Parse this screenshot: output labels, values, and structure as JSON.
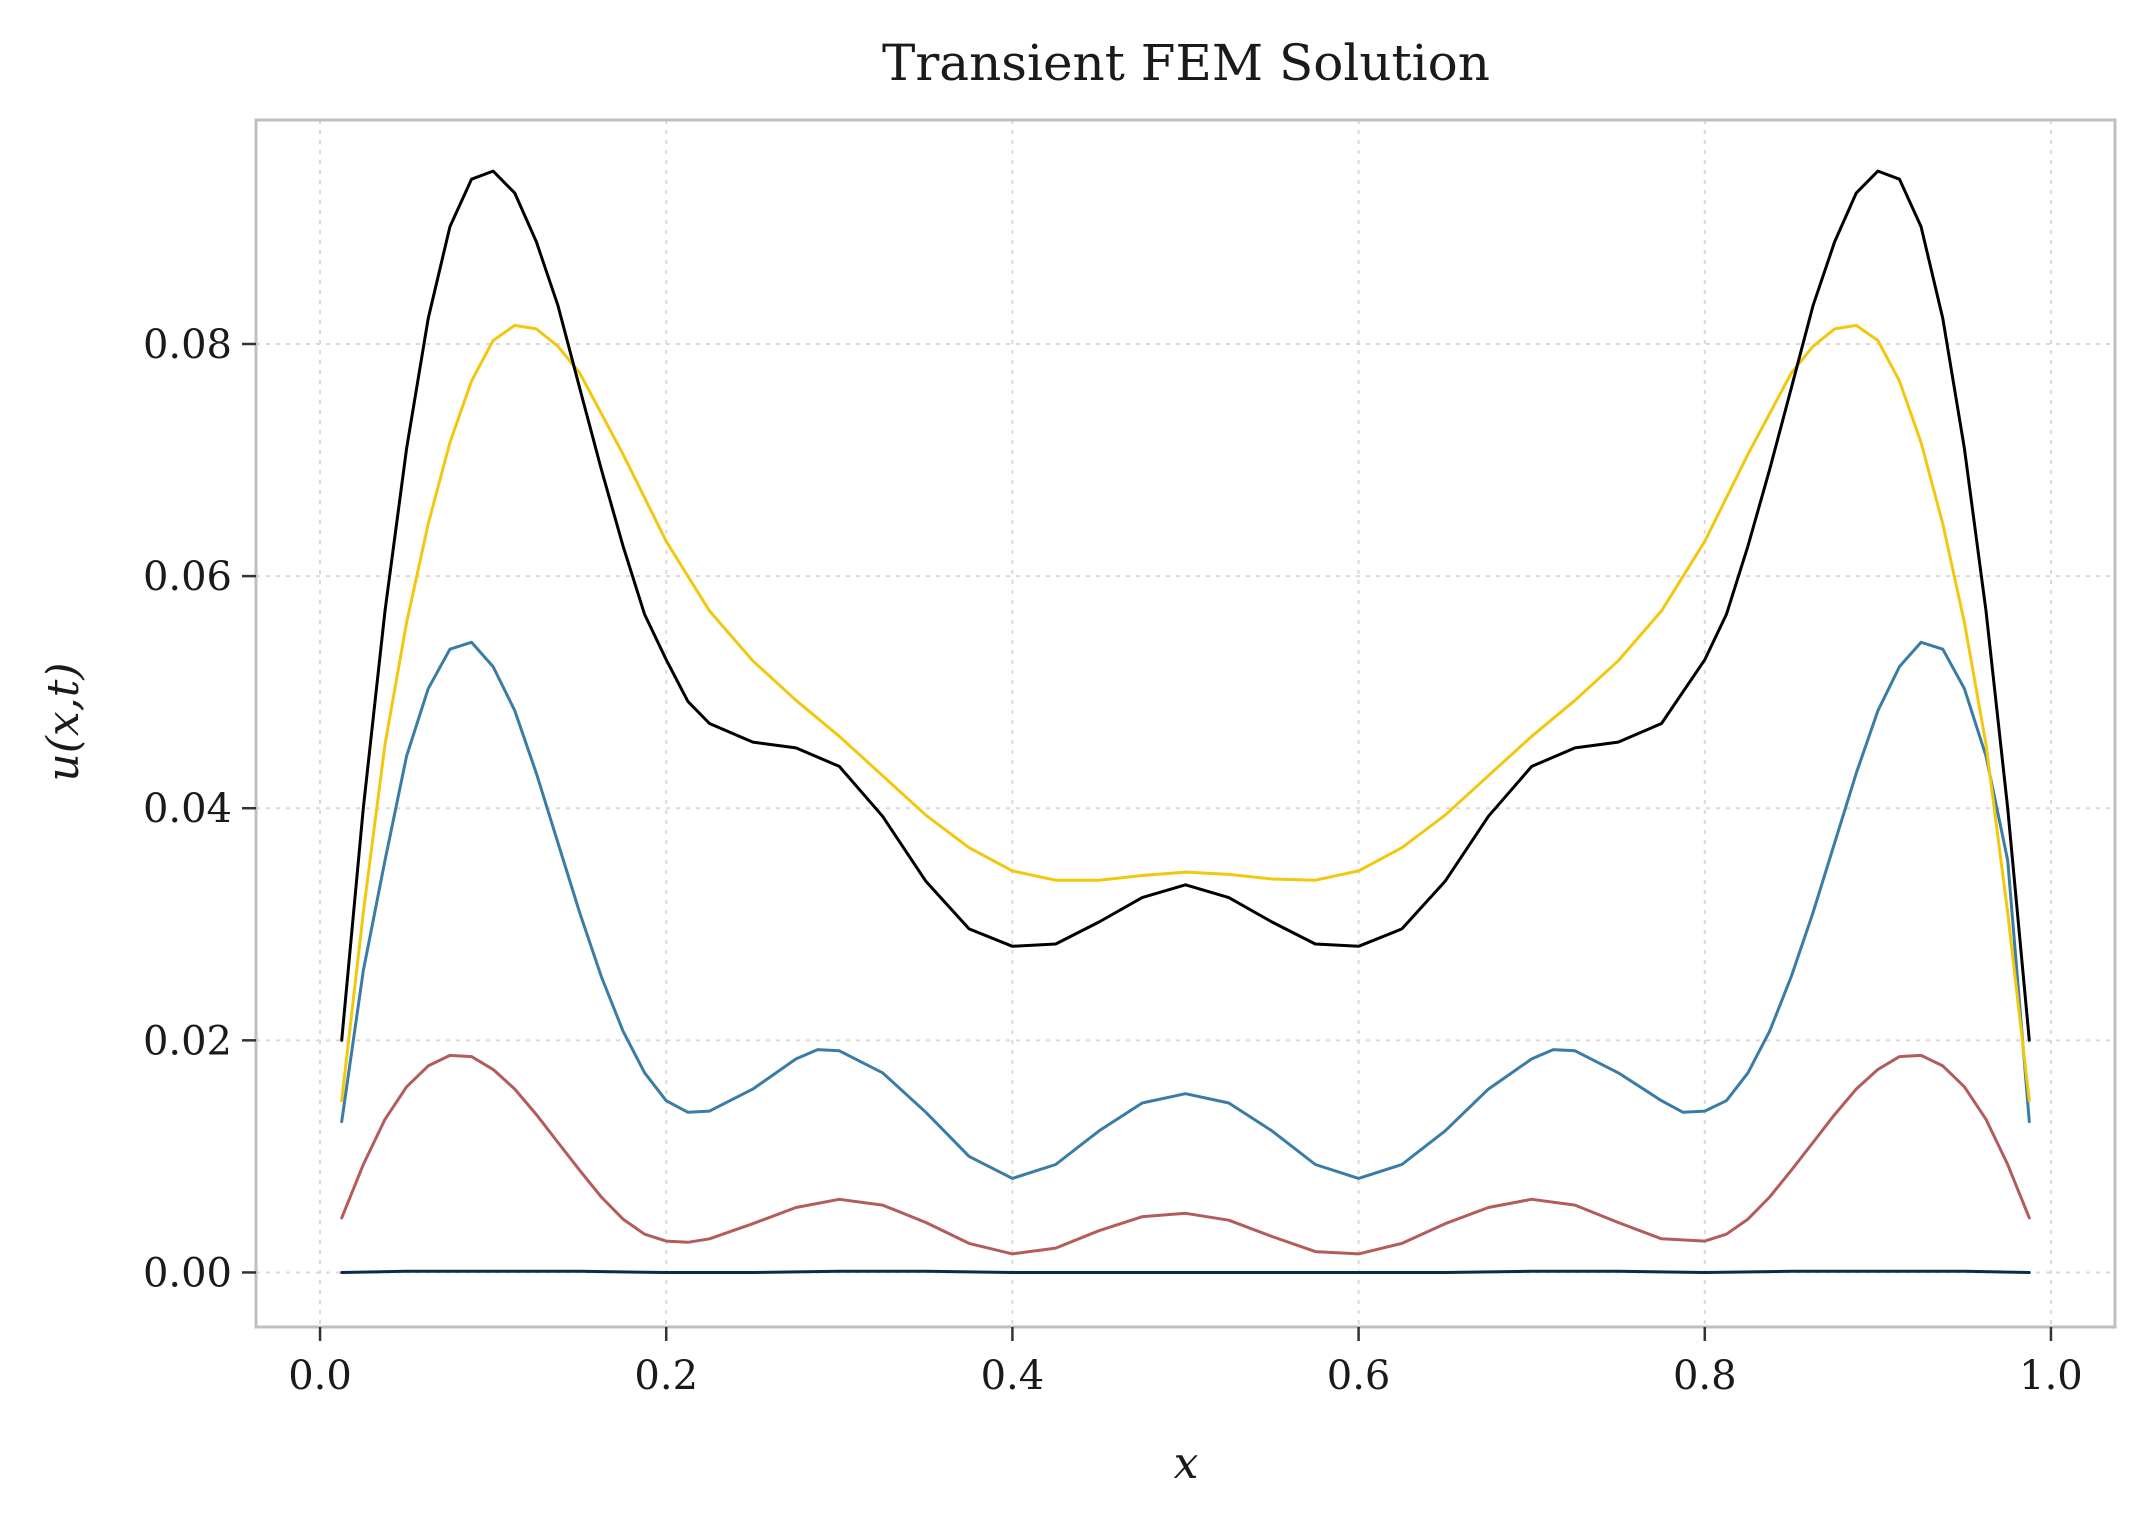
{
  "chart_data": {
    "type": "line",
    "title": "Transient FEM Solution",
    "xlabel": "x",
    "ylabel": "u(x,t)",
    "xlim": [
      -0.037,
      1.037
    ],
    "ylim": [
      -0.0047,
      0.0993
    ],
    "xticks": [
      0.0,
      0.2,
      0.4,
      0.6,
      0.8,
      1.0
    ],
    "xtick_labels": [
      "0.0",
      "0.2",
      "0.4",
      "0.6",
      "0.8",
      "1.0"
    ],
    "yticks": [
      0.0,
      0.02,
      0.04,
      0.06,
      0.08
    ],
    "ytick_labels": [
      "0.00",
      "0.02",
      "0.04",
      "0.06",
      "0.08"
    ],
    "grid": true,
    "legend": "none",
    "colors": [
      "#0b2a4f",
      "#b35c5c",
      "#3a7ca5",
      "#f2c80f",
      "#000000"
    ],
    "series": [
      {
        "x": [
          0.0125,
          0.05,
          0.1,
          0.15,
          0.2,
          0.25,
          0.3,
          0.35,
          0.4,
          0.45,
          0.5,
          0.55,
          0.6,
          0.65,
          0.7,
          0.75,
          0.8,
          0.85,
          0.9,
          0.95,
          0.9875
        ],
        "y": [
          0.0,
          0.0001,
          0.0001,
          0.0001,
          0.0,
          0.0,
          0.0001,
          0.0001,
          0.0,
          0.0,
          0.0,
          0.0,
          0.0,
          0.0,
          0.0001,
          0.0001,
          0.0,
          0.0001,
          0.0001,
          0.0001,
          0.0
        ]
      },
      {
        "x": [
          0.0125,
          0.025,
          0.0375,
          0.05,
          0.0625,
          0.075,
          0.0875,
          0.1,
          0.1125,
          0.125,
          0.1375,
          0.15,
          0.1625,
          0.175,
          0.1875,
          0.2,
          0.2125,
          0.225,
          0.25,
          0.275,
          0.3,
          0.325,
          0.35,
          0.375,
          0.4,
          0.425,
          0.45,
          0.475,
          0.5,
          0.525,
          0.55,
          0.575,
          0.6,
          0.625,
          0.65,
          0.675,
          0.7,
          0.725,
          0.75,
          0.775,
          0.8,
          0.8125,
          0.825,
          0.8375,
          0.85,
          0.8625,
          0.875,
          0.8875,
          0.9,
          0.9125,
          0.925,
          0.9375,
          0.95,
          0.9625,
          0.975,
          0.9875
        ],
        "y": [
          0.0047,
          0.0093,
          0.0132,
          0.016,
          0.0178,
          0.0187,
          0.0186,
          0.0175,
          0.0158,
          0.0136,
          0.0112,
          0.0088,
          0.0065,
          0.0046,
          0.0033,
          0.0027,
          0.0026,
          0.0029,
          0.0042,
          0.0056,
          0.0063,
          0.0058,
          0.0043,
          0.0025,
          0.0016,
          0.0021,
          0.0036,
          0.0048,
          0.0051,
          0.0045,
          0.0031,
          0.0018,
          0.0016,
          0.0025,
          0.0042,
          0.0056,
          0.0063,
          0.0058,
          0.0043,
          0.0029,
          0.0027,
          0.0033,
          0.0046,
          0.0065,
          0.0088,
          0.0112,
          0.0136,
          0.0158,
          0.0175,
          0.0186,
          0.0187,
          0.0178,
          0.016,
          0.0132,
          0.0093,
          0.0047
        ]
      },
      {
        "x": [
          0.0125,
          0.025,
          0.0375,
          0.05,
          0.0625,
          0.075,
          0.0875,
          0.1,
          0.1125,
          0.125,
          0.1375,
          0.15,
          0.1625,
          0.175,
          0.1875,
          0.2,
          0.2125,
          0.225,
          0.25,
          0.275,
          0.2875,
          0.3,
          0.325,
          0.35,
          0.375,
          0.4,
          0.425,
          0.45,
          0.475,
          0.5,
          0.525,
          0.55,
          0.575,
          0.6,
          0.625,
          0.65,
          0.675,
          0.7,
          0.7125,
          0.725,
          0.75,
          0.775,
          0.7875,
          0.8,
          0.8125,
          0.825,
          0.8375,
          0.85,
          0.8625,
          0.875,
          0.8875,
          0.9,
          0.9125,
          0.925,
          0.9375,
          0.95,
          0.9625,
          0.975,
          0.9875
        ],
        "y": [
          0.013,
          0.026,
          0.0355,
          0.0445,
          0.0503,
          0.0537,
          0.0543,
          0.0522,
          0.0484,
          0.043,
          0.037,
          0.031,
          0.0255,
          0.0208,
          0.0172,
          0.0148,
          0.0138,
          0.0139,
          0.0158,
          0.0184,
          0.0192,
          0.0191,
          0.0172,
          0.0138,
          0.01,
          0.0081,
          0.0093,
          0.0122,
          0.0146,
          0.0154,
          0.0146,
          0.0122,
          0.0093,
          0.0081,
          0.0093,
          0.0122,
          0.0158,
          0.0184,
          0.0192,
          0.0191,
          0.0172,
          0.0148,
          0.0138,
          0.0139,
          0.0148,
          0.0172,
          0.0208,
          0.0255,
          0.031,
          0.037,
          0.043,
          0.0484,
          0.0522,
          0.0543,
          0.0537,
          0.0503,
          0.0445,
          0.0355,
          0.013
        ]
      },
      {
        "x": [
          0.0125,
          0.025,
          0.0375,
          0.05,
          0.0625,
          0.075,
          0.0875,
          0.1,
          0.1125,
          0.125,
          0.1375,
          0.15,
          0.175,
          0.2,
          0.225,
          0.25,
          0.275,
          0.3,
          0.325,
          0.35,
          0.375,
          0.4,
          0.425,
          0.45,
          0.475,
          0.5,
          0.525,
          0.55,
          0.575,
          0.6,
          0.625,
          0.65,
          0.675,
          0.7,
          0.725,
          0.75,
          0.775,
          0.8,
          0.825,
          0.85,
          0.8625,
          0.875,
          0.8875,
          0.9,
          0.9125,
          0.925,
          0.9375,
          0.95,
          0.9625,
          0.975,
          0.9875
        ],
        "y": [
          0.0148,
          0.031,
          0.0455,
          0.056,
          0.0645,
          0.0715,
          0.0768,
          0.0803,
          0.0816,
          0.0813,
          0.0798,
          0.0775,
          0.0705,
          0.063,
          0.057,
          0.0527,
          0.0493,
          0.0462,
          0.0428,
          0.0394,
          0.0366,
          0.0346,
          0.0338,
          0.0338,
          0.0342,
          0.0345,
          0.0343,
          0.0339,
          0.0338,
          0.0346,
          0.0366,
          0.0394,
          0.0428,
          0.0462,
          0.0493,
          0.0527,
          0.057,
          0.063,
          0.0705,
          0.0775,
          0.0798,
          0.0813,
          0.0816,
          0.0803,
          0.0768,
          0.0715,
          0.0645,
          0.056,
          0.0455,
          0.031,
          0.0148
        ]
      },
      {
        "x": [
          0.0125,
          0.025,
          0.0375,
          0.05,
          0.0625,
          0.075,
          0.0875,
          0.1,
          0.1125,
          0.125,
          0.1375,
          0.15,
          0.1625,
          0.175,
          0.1875,
          0.2,
          0.2125,
          0.225,
          0.25,
          0.275,
          0.3,
          0.325,
          0.35,
          0.375,
          0.4,
          0.425,
          0.45,
          0.475,
          0.5,
          0.525,
          0.55,
          0.575,
          0.6,
          0.625,
          0.65,
          0.675,
          0.7,
          0.725,
          0.75,
          0.775,
          0.8,
          0.8125,
          0.825,
          0.8375,
          0.85,
          0.8625,
          0.875,
          0.8875,
          0.9,
          0.9125,
          0.925,
          0.9375,
          0.95,
          0.9625,
          0.975,
          0.9875
        ],
        "y": [
          0.02,
          0.04,
          0.057,
          0.071,
          0.0822,
          0.0901,
          0.0942,
          0.0949,
          0.093,
          0.0888,
          0.0833,
          0.0762,
          0.0692,
          0.0626,
          0.0567,
          0.0528,
          0.0492,
          0.0473,
          0.0457,
          0.0452,
          0.0436,
          0.0393,
          0.0337,
          0.0296,
          0.0281,
          0.0283,
          0.0302,
          0.0323,
          0.0334,
          0.0323,
          0.0302,
          0.0283,
          0.0281,
          0.0296,
          0.0337,
          0.0393,
          0.0436,
          0.0452,
          0.0457,
          0.0473,
          0.0528,
          0.0567,
          0.0626,
          0.0692,
          0.0762,
          0.0833,
          0.0888,
          0.093,
          0.0949,
          0.0942,
          0.0901,
          0.0822,
          0.071,
          0.057,
          0.04,
          0.02
        ]
      }
    ]
  }
}
